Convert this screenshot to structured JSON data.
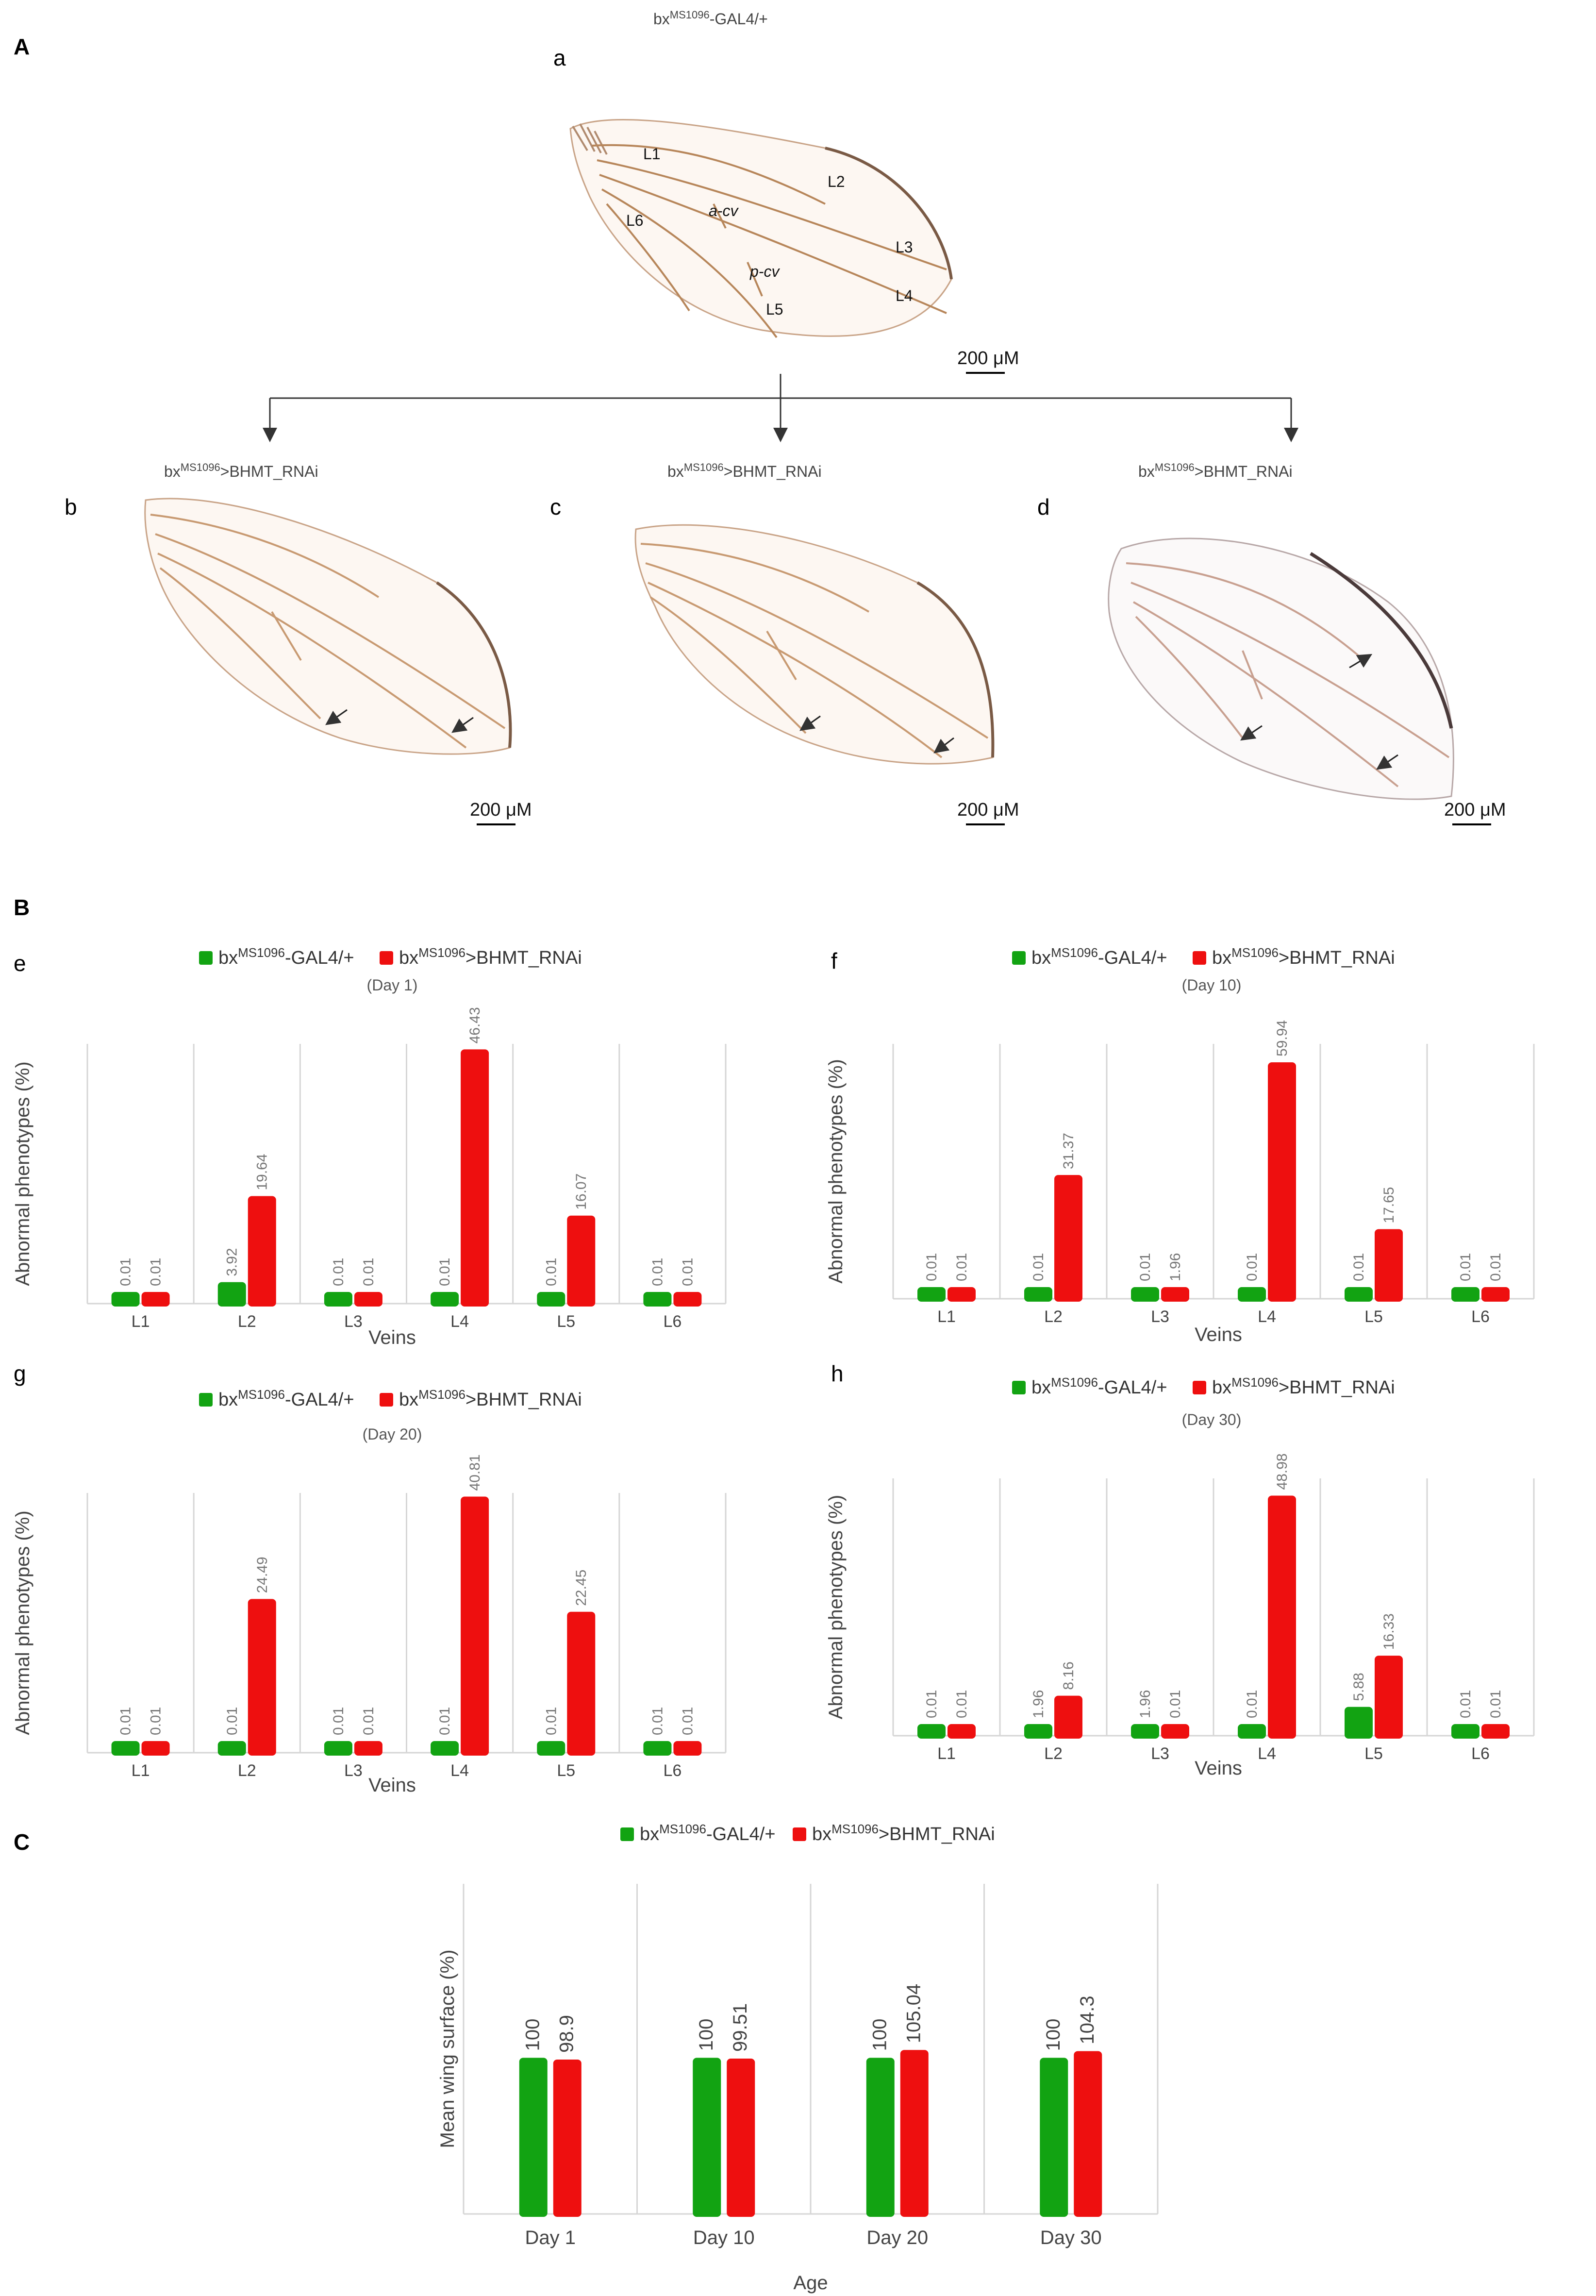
{
  "section_labels": {
    "A": "A",
    "B": "B",
    "C": "C"
  },
  "colors": {
    "control": "#12a312",
    "rnai": "#ee0f0f",
    "grid": "#d6d6d6",
    "vein": "#b7865a"
  },
  "panel_a": {
    "top_genotype": {
      "base": "bx",
      "sup": "MS1096",
      "suffix": "-GAL4/+"
    },
    "sub_labels": [
      "a",
      "b",
      "c",
      "d"
    ],
    "rnai_genotype": {
      "base": "bx",
      "sup": "MS1096",
      "suffix": ">BHMT_RNAi"
    },
    "vein_labels": [
      "L1",
      "L2",
      "L3",
      "L4",
      "L5",
      "L6",
      "a-cv",
      "p-cv"
    ],
    "scale_bar": "200 μM"
  },
  "legend": {
    "control": {
      "base": "bx",
      "sup": "MS1096",
      "suffix": "-GAL4/+"
    },
    "rnai": {
      "base": "bx",
      "sup": "MS1096",
      "suffix": ">BHMT_RNAi"
    }
  },
  "chart_data": [
    {
      "id": "e",
      "type": "bar",
      "day": "(Day 1)",
      "categories": [
        "L1",
        "L2",
        "L3",
        "L4",
        "L5",
        "L6"
      ],
      "series": [
        {
          "name": "bxMS1096-GAL4/+",
          "values": [
            0.01,
            3.92,
            0.01,
            0.01,
            0.01,
            0.01
          ]
        },
        {
          "name": "bxMS1096>BHMT_RNAi",
          "values": [
            0.01,
            19.64,
            0.01,
            46.43,
            16.07,
            0.01
          ]
        }
      ],
      "labels": [
        [
          "0.01",
          "3.92",
          "0.01",
          "0.01",
          "0.01",
          "0.01"
        ],
        [
          "0.01",
          "19.64",
          "0.01",
          "46.43",
          "16.07",
          "0.01"
        ]
      ],
      "xlabel": "Veins",
      "ylabel": "Abnormal phenotypes (%)",
      "ylim": [
        0,
        47
      ]
    },
    {
      "id": "f",
      "type": "bar",
      "day": "(Day 10)",
      "categories": [
        "L1",
        "L2",
        "L3",
        "L4",
        "L5",
        "L6"
      ],
      "series": [
        {
          "name": "bxMS1096-GAL4/+",
          "values": [
            0.01,
            0.01,
            0.01,
            0.01,
            0.01,
            0.01
          ]
        },
        {
          "name": "bxMS1096>BHMT_RNAi",
          "values": [
            0.01,
            31.37,
            1.96,
            59.94,
            17.65,
            0.01
          ]
        }
      ],
      "labels": [
        [
          "0.01",
          "0.01",
          "0.01",
          "0.01",
          "0.01",
          "0.01"
        ],
        [
          "0.01",
          "31.37",
          "1.96",
          "59.94",
          "17.65",
          "0.01"
        ]
      ],
      "xlabel": "Veins",
      "ylabel": "Abnormal phenotypes (%)",
      "ylim": [
        0,
        64
      ]
    },
    {
      "id": "g",
      "type": "bar",
      "day": "(Day 20)",
      "categories": [
        "L1",
        "L2",
        "L3",
        "L4",
        "L5",
        "L6"
      ],
      "series": [
        {
          "name": "bxMS1096-GAL4/+",
          "values": [
            0.01,
            0.01,
            0.01,
            0.01,
            0.01,
            0.01
          ]
        },
        {
          "name": "bxMS1096>BHMT_RNAi",
          "values": [
            0.01,
            24.49,
            0.01,
            40.81,
            22.45,
            0.01
          ]
        }
      ],
      "labels": [
        [
          "0.01",
          "0.01",
          "0.01",
          "0.01",
          "0.01",
          "0.01"
        ],
        [
          "0.01",
          "24.49",
          "0.01",
          "40.81",
          "22.45",
          "0.01"
        ]
      ],
      "xlabel": "Veins",
      "ylabel": "Abnormal phenotypes (%)",
      "ylim": [
        0,
        41
      ]
    },
    {
      "id": "h",
      "type": "bar",
      "day": "(Day 30)",
      "categories": [
        "L1",
        "L2",
        "L3",
        "L4",
        "L5",
        "L6"
      ],
      "series": [
        {
          "name": "bxMS1096-GAL4/+",
          "values": [
            0.01,
            1.96,
            1.96,
            0.01,
            5.88,
            0.01
          ]
        },
        {
          "name": "bxMS1096>BHMT_RNAi",
          "values": [
            0.01,
            8.16,
            0.01,
            48.98,
            16.33,
            0.01
          ]
        }
      ],
      "labels": [
        [
          "0.01",
          "1.96",
          "1.96",
          "0.01",
          "5.88",
          "0.01"
        ],
        [
          "0.01",
          "8.16",
          "0.01",
          "48.98",
          "16.33",
          "0.01"
        ]
      ],
      "xlabel": "Veins",
      "ylabel": "Abnormal phenotypes (%)",
      "ylim": [
        0,
        52
      ]
    },
    {
      "id": "C",
      "type": "bar",
      "categories": [
        "Day 1",
        "Day 10",
        "Day 20",
        "Day 30"
      ],
      "series": [
        {
          "name": "bxMS1096-GAL4/+",
          "values": [
            100,
            100,
            100,
            100
          ]
        },
        {
          "name": "bxMS1096>BHMT_RNAi",
          "values": [
            98.9,
            99.51,
            105.04,
            104.3
          ]
        }
      ],
      "labels": [
        [
          "100",
          "100",
          "100",
          "100"
        ],
        [
          "98.9",
          "99.51",
          "105.04",
          "104.3"
        ]
      ],
      "xlabel": "Age",
      "ylabel": "Mean wing surface (%)",
      "ylim": [
        0,
        106
      ]
    }
  ]
}
